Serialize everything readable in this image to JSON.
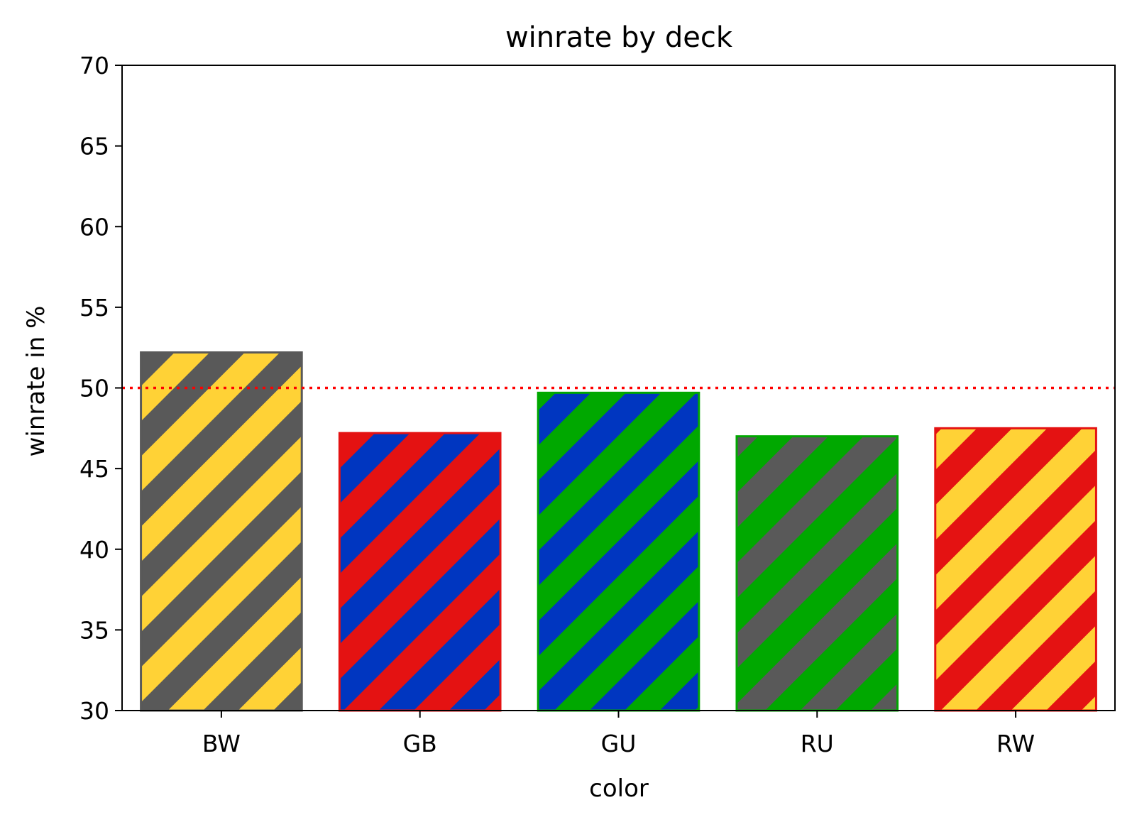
{
  "chart_data": {
    "type": "bar",
    "title": "winrate by deck",
    "xlabel": "color",
    "ylabel": "winrate in %",
    "ylim": [
      30,
      70
    ],
    "yticks": [
      30,
      35,
      40,
      45,
      50,
      55,
      60,
      65,
      70
    ],
    "categories": [
      "BW",
      "GB",
      "GU",
      "RU",
      "RW"
    ],
    "values": [
      52.2,
      47.2,
      49.7,
      47.0,
      47.5
    ],
    "reference_line": {
      "y": 50,
      "style": "dotted",
      "color": "#ff0000"
    },
    "grid": false,
    "bar_colors": [
      {
        "stripe_a": "#595959",
        "stripe_b": "#ffd236",
        "edge": "#595959"
      },
      {
        "stripe_a": "#e41212",
        "stripe_b": "#0036c0",
        "edge": "#e41212"
      },
      {
        "stripe_a": "#00a800",
        "stripe_b": "#0036c0",
        "edge": "#00a800"
      },
      {
        "stripe_a": "#00a800",
        "stripe_b": "#595959",
        "edge": "#00a800"
      },
      {
        "stripe_a": "#e41212",
        "stripe_b": "#ffd236",
        "edge": "#e41212"
      }
    ]
  }
}
